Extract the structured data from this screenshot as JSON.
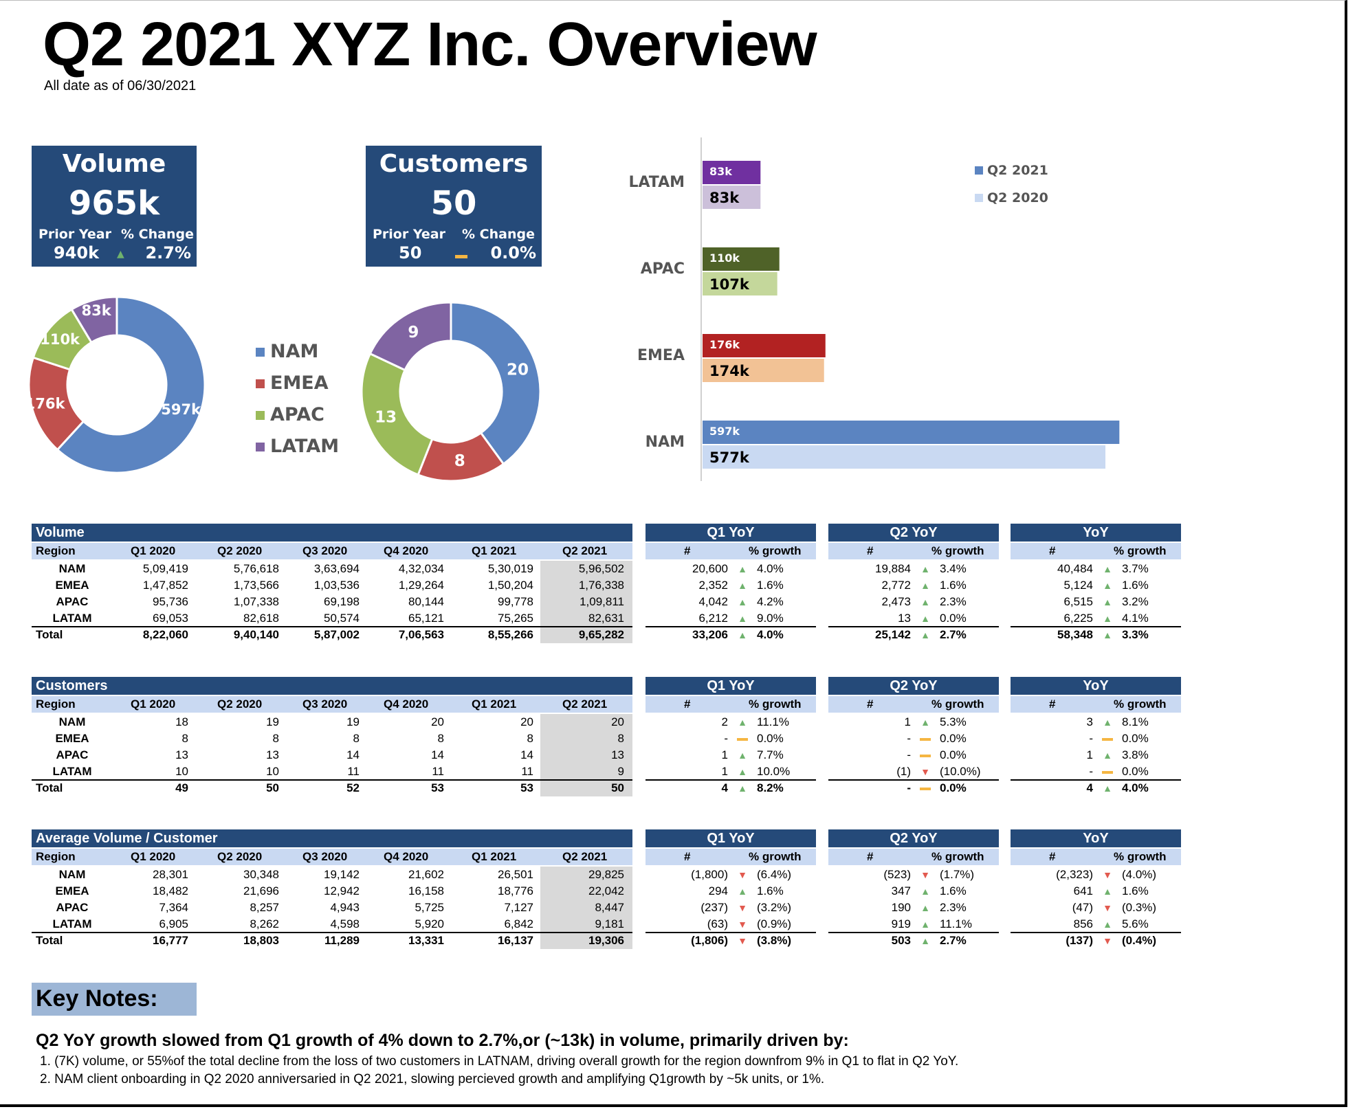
{
  "title": "Q2 2021 XYZ Inc. Overview",
  "subtitle": "All date as of 06/30/2021",
  "kpis": [
    {
      "name": "Volume",
      "value": "965k",
      "prior_label": "Prior Year",
      "change_label": "% Change",
      "prior": "940k",
      "trend": "up",
      "change": "2.7%"
    },
    {
      "name": "Customers",
      "value": "50",
      "prior_label": "Prior Year",
      "change_label": "% Change",
      "prior": "50",
      "trend": "flat",
      "change": "0.0%"
    }
  ],
  "legend": [
    "NAM",
    "EMEA",
    "APAC",
    "LATAM"
  ],
  "colors": {
    "NAM": "#5b84c1",
    "EMEA": "#c0504d",
    "APAC": "#9bbb59",
    "LATAM": "#8064a2",
    "header": "#254a79",
    "subheader": "#c9d9f2",
    "up": "#6fb26d",
    "down": "#e25a4f",
    "flat": "#f5b642"
  },
  "chart_data": [
    {
      "type": "pie",
      "name": "volume_donut",
      "categories": [
        "NAM",
        "EMEA",
        "APAC",
        "LATAM"
      ],
      "values": [
        597,
        176,
        110,
        83
      ],
      "labels": [
        "597k",
        "176k",
        "110k",
        "83k"
      ]
    },
    {
      "type": "pie",
      "name": "customers_donut",
      "categories": [
        "NAM",
        "EMEA",
        "APAC",
        "LATAM"
      ],
      "values": [
        20,
        8,
        13,
        9
      ],
      "labels": [
        "20",
        "8",
        "13",
        "9"
      ]
    },
    {
      "type": "bar",
      "orientation": "horizontal",
      "categories": [
        "LATAM",
        "APAC",
        "EMEA",
        "NAM"
      ],
      "series": [
        {
          "name": "Q2 2021",
          "values": [
            83,
            110,
            176,
            597
          ],
          "labels": [
            "83k",
            "110k",
            "176k",
            "597k"
          ],
          "colors": [
            "#7030a0",
            "#4f6228",
            "#b22222",
            "#5b84c1"
          ]
        },
        {
          "name": "Q2 2020",
          "values": [
            83,
            107,
            174,
            577
          ],
          "labels": [
            "83k",
            "107k",
            "174k",
            "577k"
          ],
          "colors": [
            "#ccc0da",
            "#c4d79b",
            "#f2c295",
            "#c9d9f2"
          ]
        }
      ],
      "legend": [
        "Q2 2021",
        "Q2 2020"
      ],
      "legend_colors": [
        "#5b84c1",
        "#c9d9f2"
      ],
      "xlim": [
        0,
        640
      ]
    }
  ],
  "tables": [
    {
      "title": "Volume",
      "columns": [
        "Region",
        "Q1 2020",
        "Q2 2020",
        "Q3 2020",
        "Q4 2020",
        "Q1 2021",
        "Q2 2021"
      ],
      "rows": [
        [
          "NAM",
          "5,09,419",
          "5,76,618",
          "3,63,694",
          "4,32,034",
          "5,30,019",
          "5,96,502"
        ],
        [
          "EMEA",
          "1,47,852",
          "1,73,566",
          "1,03,536",
          "1,29,264",
          "1,50,204",
          "1,76,338"
        ],
        [
          "APAC",
          "95,736",
          "1,07,338",
          "69,198",
          "80,144",
          "99,778",
          "1,09,811"
        ],
        [
          "LATAM",
          "69,053",
          "82,618",
          "50,574",
          "65,121",
          "75,265",
          "82,631"
        ]
      ],
      "total": [
        "Total",
        "8,22,060",
        "9,40,140",
        "5,87,002",
        "7,06,563",
        "8,55,266",
        "9,65,282"
      ],
      "yoy": [
        {
          "title": "Q1 YoY",
          "cols": [
            "#",
            "% growth"
          ],
          "rows": [
            [
              "20,600",
              "up",
              "4.0%"
            ],
            [
              "2,352",
              "up",
              "1.6%"
            ],
            [
              "4,042",
              "up",
              "4.2%"
            ],
            [
              "6,212",
              "up",
              "9.0%"
            ]
          ],
          "total": [
            "33,206",
            "up",
            "4.0%"
          ]
        },
        {
          "title": "Q2 YoY",
          "cols": [
            "#",
            "% growth"
          ],
          "rows": [
            [
              "19,884",
              "up",
              "3.4%"
            ],
            [
              "2,772",
              "up",
              "1.6%"
            ],
            [
              "2,473",
              "up",
              "2.3%"
            ],
            [
              "13",
              "up",
              "0.0%"
            ]
          ],
          "total": [
            "25,142",
            "up",
            "2.7%"
          ]
        },
        {
          "title": "YoY",
          "cols": [
            "#",
            "% growth"
          ],
          "rows": [
            [
              "40,484",
              "up",
              "3.7%"
            ],
            [
              "5,124",
              "up",
              "1.6%"
            ],
            [
              "6,515",
              "up",
              "3.2%"
            ],
            [
              "6,225",
              "up",
              "4.1%"
            ]
          ],
          "total": [
            "58,348",
            "up",
            "3.3%"
          ]
        }
      ]
    },
    {
      "title": "Customers",
      "columns": [
        "Region",
        "Q1 2020",
        "Q2 2020",
        "Q3 2020",
        "Q4 2020",
        "Q1 2021",
        "Q2 2021"
      ],
      "rows": [
        [
          "NAM",
          "18",
          "19",
          "19",
          "20",
          "20",
          "20"
        ],
        [
          "EMEA",
          "8",
          "8",
          "8",
          "8",
          "8",
          "8"
        ],
        [
          "APAC",
          "13",
          "13",
          "14",
          "14",
          "14",
          "13"
        ],
        [
          "LATAM",
          "10",
          "10",
          "11",
          "11",
          "11",
          "9"
        ]
      ],
      "total": [
        "Total",
        "49",
        "50",
        "52",
        "53",
        "53",
        "50"
      ],
      "yoy": [
        {
          "title": "Q1 YoY",
          "cols": [
            "#",
            "% growth"
          ],
          "rows": [
            [
              "2",
              "up",
              "11.1%"
            ],
            [
              "-",
              "flat",
              "0.0%"
            ],
            [
              "1",
              "up",
              "7.7%"
            ],
            [
              "1",
              "up",
              "10.0%"
            ]
          ],
          "total": [
            "4",
            "up",
            "8.2%"
          ]
        },
        {
          "title": "Q2 YoY",
          "cols": [
            "#",
            "% growth"
          ],
          "rows": [
            [
              "1",
              "up",
              "5.3%"
            ],
            [
              "-",
              "flat",
              "0.0%"
            ],
            [
              "-",
              "flat",
              "0.0%"
            ],
            [
              "(1)",
              "down",
              "(10.0%)"
            ]
          ],
          "total": [
            "-",
            "flat",
            "0.0%"
          ]
        },
        {
          "title": "YoY",
          "cols": [
            "#",
            "% growth"
          ],
          "rows": [
            [
              "3",
              "up",
              "8.1%"
            ],
            [
              "-",
              "flat",
              "0.0%"
            ],
            [
              "1",
              "up",
              "3.8%"
            ],
            [
              "-",
              "flat",
              "0.0%"
            ]
          ],
          "total": [
            "4",
            "up",
            "4.0%"
          ]
        }
      ]
    },
    {
      "title": "Average Volume / Customer",
      "columns": [
        "Region",
        "Q1 2020",
        "Q2 2020",
        "Q3 2020",
        "Q4 2020",
        "Q1 2021",
        "Q2 2021"
      ],
      "rows": [
        [
          "NAM",
          "28,301",
          "30,348",
          "19,142",
          "21,602",
          "26,501",
          "29,825"
        ],
        [
          "EMEA",
          "18,482",
          "21,696",
          "12,942",
          "16,158",
          "18,776",
          "22,042"
        ],
        [
          "APAC",
          "7,364",
          "8,257",
          "4,943",
          "5,725",
          "7,127",
          "8,447"
        ],
        [
          "LATAM",
          "6,905",
          "8,262",
          "4,598",
          "5,920",
          "6,842",
          "9,181"
        ]
      ],
      "total": [
        "Total",
        "16,777",
        "18,803",
        "11,289",
        "13,331",
        "16,137",
        "19,306"
      ],
      "yoy": [
        {
          "title": "Q1 YoY",
          "cols": [
            "#",
            "% growth"
          ],
          "rows": [
            [
              "(1,800)",
              "down",
              "(6.4%)"
            ],
            [
              "294",
              "up",
              "1.6%"
            ],
            [
              "(237)",
              "down",
              "(3.2%)"
            ],
            [
              "(63)",
              "down",
              "(0.9%)"
            ]
          ],
          "total": [
            "(1,806)",
            "down",
            "(3.8%)"
          ]
        },
        {
          "title": "Q2 YoY",
          "cols": [
            "#",
            "% growth"
          ],
          "rows": [
            [
              "(523)",
              "down",
              "(1.7%)"
            ],
            [
              "347",
              "up",
              "1.6%"
            ],
            [
              "190",
              "up",
              "2.3%"
            ],
            [
              "919",
              "up",
              "11.1%"
            ]
          ],
          "total": [
            "503",
            "up",
            "2.7%"
          ]
        },
        {
          "title": "YoY",
          "cols": [
            "#",
            "% growth"
          ],
          "rows": [
            [
              "(2,323)",
              "down",
              "(4.0%)"
            ],
            [
              "641",
              "up",
              "1.6%"
            ],
            [
              "(47)",
              "down",
              "(0.3%)"
            ],
            [
              "856",
              "up",
              "5.6%"
            ]
          ],
          "total": [
            "(137)",
            "down",
            "(0.4%)"
          ]
        }
      ]
    }
  ],
  "notes": {
    "title": "Key Notes:",
    "headline": "Q2 YoY growth slowed from Q1 growth of 4% down to 2.7%,or (~13k) in volume, primarily driven by:",
    "items": [
      "1. (7K) volume, or 55%of the total decline from the loss of two customers in LATNAM, driving overall growth for the region downfrom 9% in Q1 to flat in Q2 YoY.",
      "2. NAM client onboarding in Q2 2020 anniversaried in Q2 2021, slowing percieved growth and amplifying Q1growth by ~5k units, or 1%."
    ]
  }
}
